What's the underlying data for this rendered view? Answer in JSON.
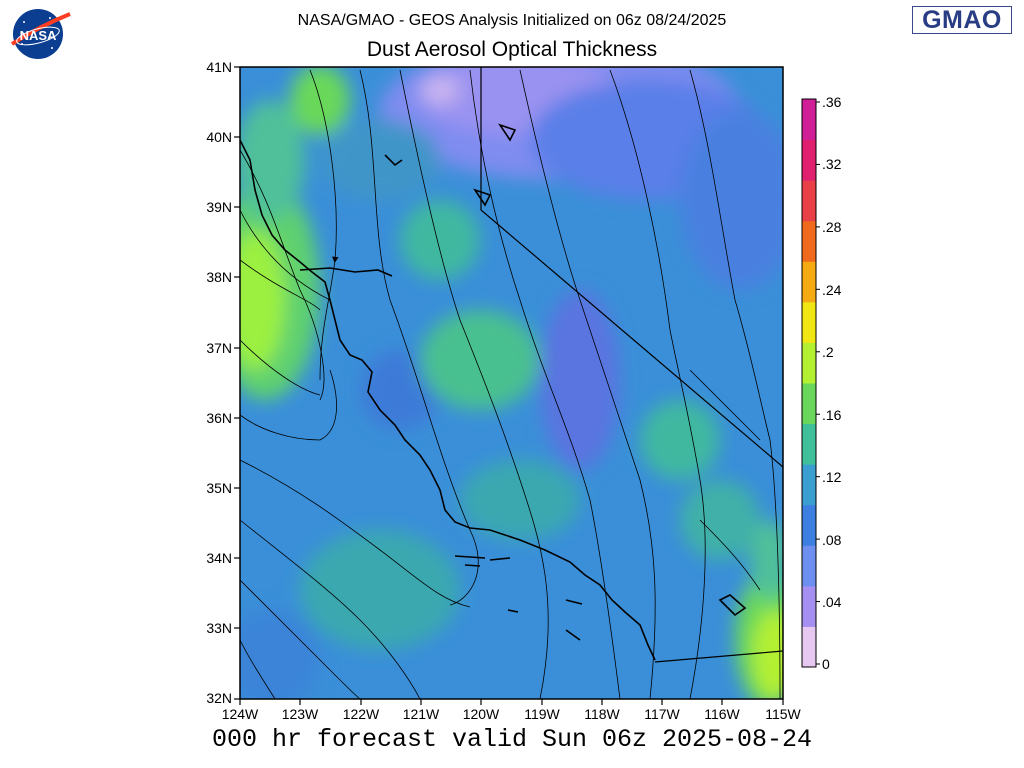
{
  "header": {
    "line1": "NASA/GMAO - GEOS Analysis Initialized on 06z 08/24/2025",
    "title": "Dust Aerosol Optical Thickness"
  },
  "footer": {
    "valid_text": "000 hr forecast valid Sun 06z 2025-08-24"
  },
  "logos": {
    "nasa": "NASA",
    "gmao": "GMAO"
  },
  "axes": {
    "lat_labels": [
      "41N",
      "40N",
      "39N",
      "38N",
      "37N",
      "36N",
      "35N",
      "34N",
      "33N",
      "32N"
    ],
    "lon_labels": [
      "124W",
      "123W",
      "122W",
      "121W",
      "120W",
      "119W",
      "118W",
      "117W",
      "116W",
      "115W"
    ]
  },
  "colorbar": {
    "labels": [
      ".36",
      ".32",
      ".28",
      ".24",
      ".2",
      ".16",
      ".12",
      ".08",
      ".04",
      "0"
    ],
    "colors": [
      "#e6c8f0",
      "#a58ff0",
      "#6f8ff0",
      "#3d7fe0",
      "#3a9fd0",
      "#3fbf9a",
      "#69d85a",
      "#b4f032",
      "#f0e612",
      "#f5a912",
      "#f06a1e",
      "#e84046",
      "#e0206e",
      "#d01e96"
    ]
  },
  "map_legend": {
    "type": "map-field",
    "variable": "Dust Aerosol Optical Thickness",
    "extent": {
      "lon_min": -124,
      "lon_max": -115,
      "lat_min": 32,
      "lat_max": 41
    },
    "features": [
      "coastline",
      "state-borders",
      "streamlines",
      "aot-shading"
    ]
  }
}
